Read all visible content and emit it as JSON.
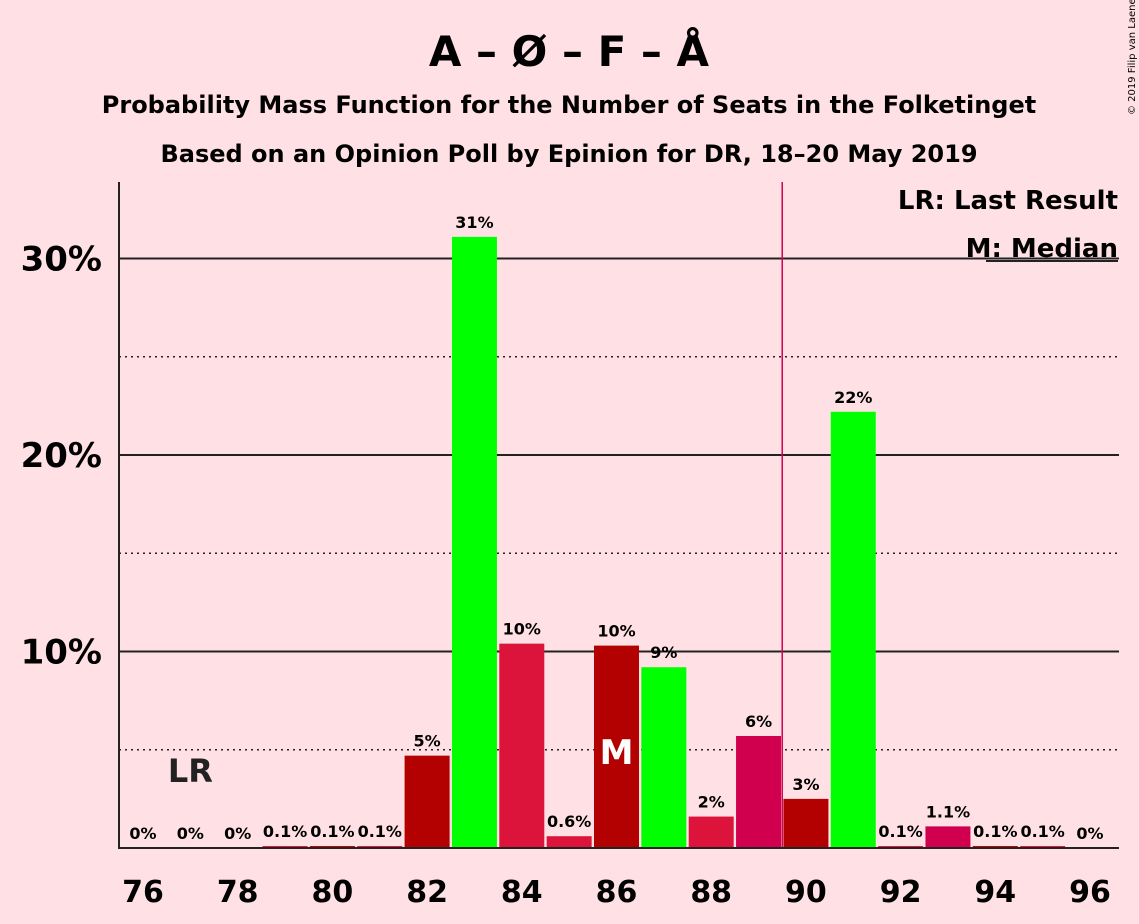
{
  "chart_data": {
    "type": "bar",
    "title": "A – Ø – F – Å",
    "subtitle": "Probability Mass Function for the Number of Seats in the Folketinget",
    "subtitle2": "Based on an Opinion Poll by Epinion for DR, 18–20 May 2019",
    "credit": "© 2019 Filip van Laenen",
    "x": [
      76,
      77,
      78,
      79,
      80,
      81,
      82,
      83,
      84,
      85,
      86,
      87,
      88,
      89,
      90,
      91,
      92,
      93,
      94,
      95,
      96
    ],
    "values": [
      0,
      0,
      0,
      0.1,
      0.1,
      0.1,
      4.7,
      31.1,
      10.4,
      0.6,
      10.3,
      9.2,
      1.6,
      5.7,
      2.5,
      22.2,
      0.1,
      1.1,
      0.1,
      0.1,
      0
    ],
    "labels": [
      "0%",
      "0%",
      "0%",
      "0.1%",
      "0.1%",
      "0.1%",
      "5%",
      "31%",
      "10%",
      "0.6%",
      "10%",
      "9%",
      "2%",
      "6%",
      "3%",
      "22%",
      "0.1%",
      "1.1%",
      "0.1%",
      "0.1%",
      "0%"
    ],
    "colors": [
      "#b30000",
      "#dc143c",
      "#00ff00",
      "#dc143c",
      "#b30000",
      "#dc143c",
      "#b30000",
      "#00ff00",
      "#dc143c",
      "#dc143c",
      "#b30000",
      "#00ff00",
      "#dc143c",
      "#d1004f",
      "#b30000",
      "#00ff00",
      "#dc143c",
      "#d1004f",
      "#b30000",
      "#dc143c",
      "#b30000"
    ],
    "xticks": [
      "76",
      "78",
      "80",
      "82",
      "84",
      "86",
      "88",
      "90",
      "92",
      "94",
      "96"
    ],
    "yticks": [
      "10%",
      "20%",
      "30%"
    ],
    "ylim": [
      0,
      34
    ],
    "majority_line": 89.5,
    "last_result": 77,
    "last_result_label": "LR",
    "median": 86,
    "median_label": "M",
    "legend": {
      "lr": "LR: Last Result",
      "m": "M: Median"
    },
    "grid": true
  }
}
